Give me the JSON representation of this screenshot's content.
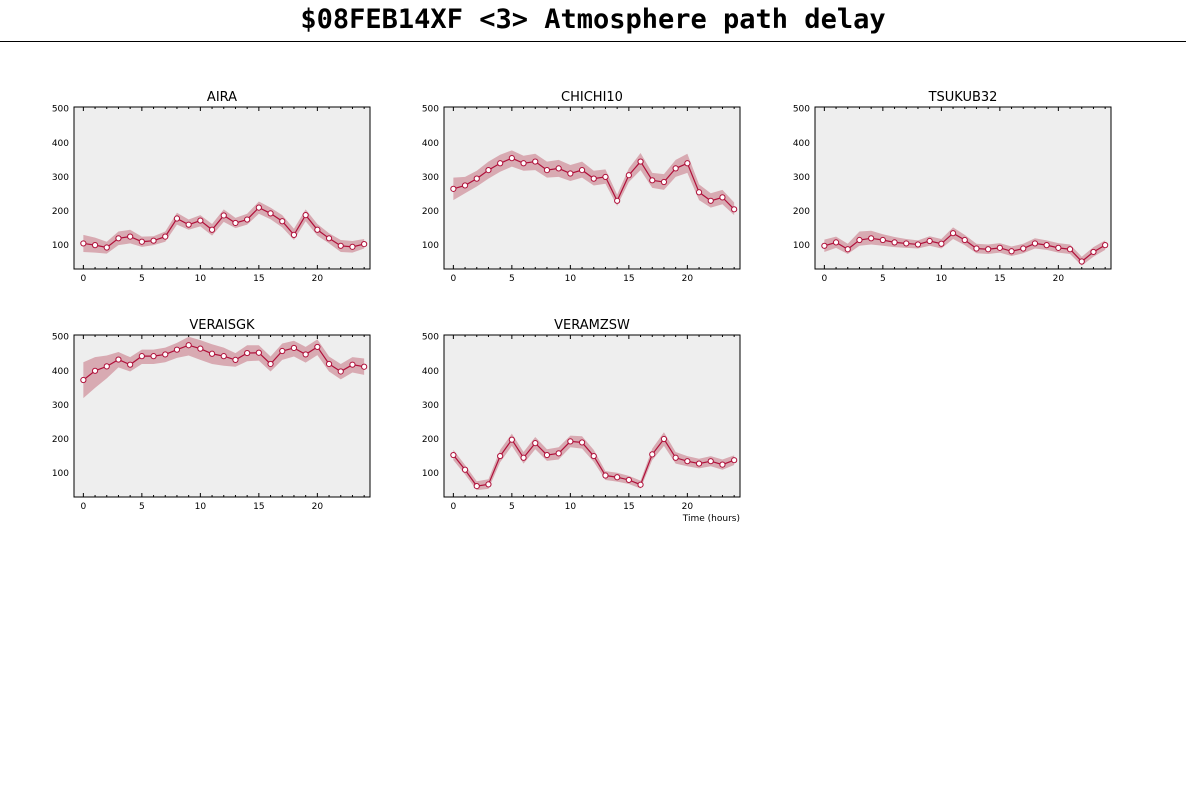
{
  "header": {
    "title": "$08FEB14XF <3>  Atmosphere path delay"
  },
  "colors": {
    "panel_bg": "#eeeeee",
    "line": "#b0103a",
    "band": "#d8aab2",
    "axis": "#000000"
  },
  "chart_data": [
    {
      "type": "line",
      "title": "AIRA",
      "xlabel": "",
      "xlim": [
        -0.8,
        24.5
      ],
      "ylim": [
        30,
        505
      ],
      "xticks": [
        0,
        5,
        10,
        15,
        20
      ],
      "yticks": [
        100,
        200,
        300,
        400,
        500
      ],
      "x": [
        0,
        1,
        2,
        3,
        4,
        5,
        6,
        7,
        8,
        9,
        10,
        11,
        12,
        13,
        14,
        15,
        16,
        17,
        18,
        19,
        20,
        21,
        22,
        23,
        24
      ],
      "y": [
        105,
        100,
        93,
        120,
        125,
        110,
        113,
        125,
        178,
        160,
        172,
        145,
        187,
        165,
        175,
        210,
        193,
        170,
        130,
        188,
        145,
        120,
        98,
        95,
        103
      ],
      "band": [
        [
          80,
          130
        ],
        [
          78,
          122
        ],
        [
          75,
          110
        ],
        [
          100,
          140
        ],
        [
          105,
          145
        ],
        [
          95,
          125
        ],
        [
          100,
          126
        ],
        [
          110,
          140
        ],
        [
          160,
          195
        ],
        [
          145,
          175
        ],
        [
          155,
          188
        ],
        [
          128,
          162
        ],
        [
          168,
          205
        ],
        [
          150,
          180
        ],
        [
          160,
          192
        ],
        [
          192,
          228
        ],
        [
          176,
          210
        ],
        [
          152,
          188
        ],
        [
          115,
          148
        ],
        [
          170,
          205
        ],
        [
          128,
          162
        ],
        [
          105,
          135
        ],
        [
          80,
          115
        ],
        [
          78,
          112
        ],
        [
          90,
          118
        ]
      ]
    },
    {
      "type": "line",
      "title": "CHICHI10",
      "xlabel": "",
      "xlim": [
        -0.8,
        24.5
      ],
      "ylim": [
        30,
        505
      ],
      "xticks": [
        0,
        5,
        10,
        15,
        20
      ],
      "yticks": [
        100,
        200,
        300,
        400,
        500
      ],
      "x": [
        0,
        1,
        2,
        3,
        4,
        5,
        6,
        7,
        8,
        9,
        10,
        11,
        12,
        13,
        14,
        15,
        16,
        17,
        18,
        19,
        20,
        21,
        22,
        23,
        24
      ],
      "y": [
        265,
        275,
        295,
        320,
        340,
        355,
        340,
        345,
        320,
        325,
        310,
        320,
        295,
        300,
        230,
        305,
        345,
        290,
        285,
        325,
        340,
        255,
        230,
        240,
        205
      ],
      "band": [
        [
          232,
          298
        ],
        [
          252,
          300
        ],
        [
          272,
          318
        ],
        [
          295,
          345
        ],
        [
          315,
          365
        ],
        [
          330,
          378
        ],
        [
          318,
          362
        ],
        [
          320,
          368
        ],
        [
          298,
          345
        ],
        [
          300,
          350
        ],
        [
          288,
          335
        ],
        [
          298,
          345
        ],
        [
          275,
          318
        ],
        [
          280,
          322
        ],
        [
          215,
          248
        ],
        [
          285,
          325
        ],
        [
          320,
          370
        ],
        [
          268,
          312
        ],
        [
          262,
          308
        ],
        [
          300,
          350
        ],
        [
          312,
          368
        ],
        [
          232,
          278
        ],
        [
          210,
          252
        ],
        [
          220,
          262
        ],
        [
          188,
          225
        ]
      ]
    },
    {
      "type": "line",
      "title": "TSUKUB32",
      "xlabel": "",
      "xlim": [
        -0.8,
        24.5
      ],
      "ylim": [
        30,
        505
      ],
      "xticks": [
        0,
        5,
        10,
        15,
        20
      ],
      "yticks": [
        100,
        200,
        300,
        400,
        500
      ],
      "x": [
        0,
        1,
        2,
        3,
        4,
        5,
        6,
        7,
        8,
        9,
        10,
        11,
        12,
        13,
        14,
        15,
        16,
        17,
        18,
        19,
        20,
        21,
        22,
        23,
        24
      ],
      "y": [
        98,
        108,
        88,
        115,
        120,
        115,
        108,
        105,
        102,
        112,
        104,
        135,
        115,
        90,
        88,
        92,
        82,
        90,
        105,
        100,
        92,
        88,
        52,
        80,
        100
      ],
      "band": [
        [
          80,
          116
        ],
        [
          92,
          125
        ],
        [
          74,
          104
        ],
        [
          98,
          140
        ],
        [
          102,
          142
        ],
        [
          98,
          132
        ],
        [
          94,
          124
        ],
        [
          92,
          118
        ],
        [
          90,
          114
        ],
        [
          98,
          126
        ],
        [
          90,
          118
        ],
        [
          118,
          152
        ],
        [
          100,
          130
        ],
        [
          76,
          104
        ],
        [
          74,
          102
        ],
        [
          78,
          106
        ],
        [
          68,
          96
        ],
        [
          76,
          104
        ],
        [
          90,
          120
        ],
        [
          86,
          114
        ],
        [
          78,
          106
        ],
        [
          74,
          102
        ],
        [
          40,
          66
        ],
        [
          66,
          94
        ],
        [
          86,
          114
        ]
      ]
    },
    {
      "type": "line",
      "title": "VERAISGK",
      "xlabel": "",
      "xlim": [
        -0.8,
        24.5
      ],
      "ylim": [
        30,
        505
      ],
      "xticks": [
        0,
        5,
        10,
        15,
        20
      ],
      "yticks": [
        100,
        200,
        300,
        400,
        500
      ],
      "x": [
        0,
        1,
        2,
        3,
        4,
        5,
        6,
        7,
        8,
        9,
        10,
        11,
        12,
        13,
        14,
        15,
        16,
        17,
        18,
        19,
        20,
        21,
        22,
        23,
        24
      ],
      "y": [
        373,
        400,
        413,
        433,
        418,
        443,
        443,
        448,
        462,
        475,
        465,
        450,
        443,
        432,
        452,
        453,
        420,
        458,
        467,
        448,
        470,
        420,
        398,
        418,
        412
      ],
      "band": [
        [
          320,
          425
        ],
        [
          350,
          440
        ],
        [
          378,
          445
        ],
        [
          410,
          455
        ],
        [
          398,
          440
        ],
        [
          420,
          462
        ],
        [
          420,
          462
        ],
        [
          425,
          468
        ],
        [
          438,
          482
        ],
        [
          445,
          500
        ],
        [
          432,
          490
        ],
        [
          420,
          478
        ],
        [
          415,
          468
        ],
        [
          412,
          452
        ],
        [
          428,
          475
        ],
        [
          430,
          475
        ],
        [
          398,
          442
        ],
        [
          432,
          480
        ],
        [
          442,
          488
        ],
        [
          424,
          470
        ],
        [
          446,
          492
        ],
        [
          398,
          442
        ],
        [
          375,
          420
        ],
        [
          395,
          440
        ],
        [
          388,
          436
        ]
      ]
    },
    {
      "type": "line",
      "title": "VERAMZSW",
      "xlabel": "Time (hours)",
      "xlim": [
        -0.8,
        24.5
      ],
      "ylim": [
        30,
        505
      ],
      "xticks": [
        0,
        5,
        10,
        15,
        20
      ],
      "yticks": [
        100,
        200,
        300,
        400,
        500
      ],
      "x": [
        0,
        1,
        2,
        3,
        4,
        5,
        6,
        7,
        8,
        9,
        10,
        11,
        12,
        13,
        14,
        15,
        16,
        17,
        18,
        19,
        20,
        21,
        22,
        23,
        24
      ],
      "y": [
        153,
        110,
        62,
        67,
        150,
        198,
        145,
        188,
        153,
        158,
        193,
        190,
        150,
        93,
        88,
        80,
        66,
        155,
        200,
        145,
        135,
        128,
        135,
        125,
        138
      ],
      "band": [
        [
          138,
          168
        ],
        [
          96,
          124
        ],
        [
          50,
          76
        ],
        [
          54,
          82
        ],
        [
          132,
          168
        ],
        [
          180,
          216
        ],
        [
          128,
          162
        ],
        [
          170,
          206
        ],
        [
          136,
          170
        ],
        [
          140,
          176
        ],
        [
          176,
          210
        ],
        [
          172,
          208
        ],
        [
          133,
          168
        ],
        [
          80,
          106
        ],
        [
          75,
          101
        ],
        [
          68,
          92
        ],
        [
          55,
          78
        ],
        [
          138,
          172
        ],
        [
          180,
          220
        ],
        [
          128,
          162
        ],
        [
          120,
          150
        ],
        [
          114,
          142
        ],
        [
          120,
          150
        ],
        [
          110,
          140
        ],
        [
          124,
          152
        ]
      ]
    }
  ]
}
